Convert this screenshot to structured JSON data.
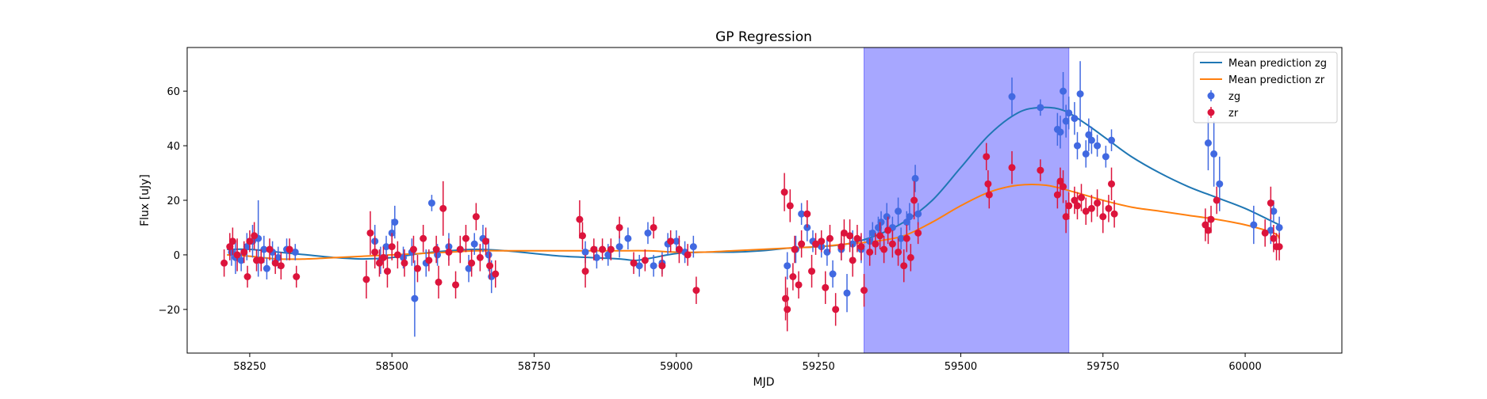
{
  "chart_data": {
    "type": "scatter",
    "title": "GP Regression",
    "xlabel": "MJD",
    "ylabel": "Flux [uJy]",
    "xlim": [
      58140,
      60170
    ],
    "ylim": [
      -36,
      76
    ],
    "xticks": [
      58250,
      58500,
      58750,
      59000,
      59250,
      59500,
      59750,
      60000
    ],
    "yticks": [
      -20,
      0,
      20,
      40,
      60
    ],
    "grid": false,
    "legend_position": "top-right",
    "shaded_region": {
      "x_start": 59330,
      "x_end": 59690,
      "color": "#a7a7ff"
    },
    "lines": [
      {
        "name": "Mean prediction zg",
        "color": "#1f77b4",
        "x": [
          58210,
          58250,
          58300,
          58350,
          58400,
          58450,
          58500,
          58550,
          58600,
          58650,
          58700,
          58750,
          58800,
          58850,
          58900,
          58930,
          58960,
          59000,
          59050,
          59100,
          59150,
          59200,
          59250,
          59300,
          59350,
          59400,
          59450,
          59500,
          59550,
          59600,
          59640,
          59680,
          59720,
          59760,
          59800,
          59850,
          59900,
          59950,
          60000,
          60050,
          60060
        ],
        "y": [
          2,
          2,
          1,
          0,
          -1,
          -1.5,
          -1,
          0.5,
          1.5,
          2,
          1.5,
          0.5,
          -0.5,
          -1,
          -1.5,
          -2,
          -1,
          0.5,
          1,
          1,
          1.5,
          2.5,
          3,
          4,
          7,
          12,
          20,
          32,
          44,
          52,
          54,
          53,
          48,
          42,
          36,
          30,
          25,
          21,
          17,
          12,
          11
        ]
      },
      {
        "name": "Mean prediction zr",
        "color": "#ff7f0e",
        "x": [
          58210,
          58250,
          58300,
          58350,
          58400,
          58450,
          58500,
          58550,
          58600,
          58650,
          58700,
          58750,
          58800,
          58850,
          58900,
          58950,
          59000,
          59050,
          59100,
          59150,
          59200,
          59250,
          59300,
          59350,
          59400,
          59450,
          59500,
          59550,
          59600,
          59650,
          59700,
          59750,
          59800,
          59850,
          59900,
          59950,
          60000,
          60050,
          60060
        ],
        "y": [
          0,
          -0.5,
          -1.5,
          -1.5,
          -1,
          -0.5,
          0,
          0.5,
          1,
          1.5,
          1.5,
          1.5,
          1.5,
          1.5,
          1.5,
          1.5,
          1,
          1,
          1.5,
          2,
          2.5,
          3,
          4,
          5,
          7,
          12,
          18,
          23,
          25.5,
          25.5,
          23,
          20,
          17.5,
          16,
          14.5,
          13,
          11,
          8,
          6
        ]
      }
    ],
    "series": [
      {
        "name": "zg",
        "color": "#4169e1",
        "points": [
          [
            58218,
            1,
            5
          ],
          [
            58225,
            -1,
            6
          ],
          [
            58235,
            -2,
            4
          ],
          [
            58245,
            3,
            5
          ],
          [
            58255,
            5,
            6
          ],
          [
            58265,
            6,
            14
          ],
          [
            58275,
            2,
            5
          ],
          [
            58280,
            -5,
            4
          ],
          [
            58290,
            1,
            4
          ],
          [
            58300,
            -1,
            4
          ],
          [
            58315,
            2,
            4
          ],
          [
            58330,
            1,
            3
          ],
          [
            58470,
            5,
            6
          ],
          [
            58480,
            -2,
            5
          ],
          [
            58490,
            3,
            4
          ],
          [
            58500,
            8,
            5
          ],
          [
            58505,
            12,
            6
          ],
          [
            58520,
            -1,
            4
          ],
          [
            58535,
            1,
            5
          ],
          [
            58540,
            -16,
            14
          ],
          [
            58560,
            -3,
            5
          ],
          [
            58570,
            19,
            3
          ],
          [
            58580,
            0,
            4
          ],
          [
            58600,
            3,
            5
          ],
          [
            58620,
            2,
            4
          ],
          [
            58635,
            -5,
            5
          ],
          [
            58645,
            4,
            4
          ],
          [
            58660,
            6,
            5
          ],
          [
            58670,
            0,
            6
          ],
          [
            58675,
            -8,
            6
          ],
          [
            58840,
            1,
            4
          ],
          [
            58860,
            -1,
            4
          ],
          [
            58880,
            0,
            4
          ],
          [
            58900,
            3,
            4
          ],
          [
            58915,
            6,
            4
          ],
          [
            58935,
            -4,
            4
          ],
          [
            58950,
            8,
            4
          ],
          [
            58960,
            -4,
            4
          ],
          [
            58975,
            -3,
            4
          ],
          [
            58985,
            4,
            4
          ],
          [
            59000,
            5,
            4
          ],
          [
            59015,
            1,
            4
          ],
          [
            59030,
            3,
            4
          ],
          [
            59195,
            -4,
            5
          ],
          [
            59210,
            2,
            5
          ],
          [
            59220,
            15,
            4
          ],
          [
            59230,
            10,
            5
          ],
          [
            59240,
            5,
            4
          ],
          [
            59255,
            3,
            4
          ],
          [
            59265,
            1,
            5
          ],
          [
            59275,
            -7,
            5
          ],
          [
            59290,
            2,
            4
          ],
          [
            59300,
            -14,
            7
          ],
          [
            59310,
            4,
            5
          ],
          [
            59325,
            2,
            5
          ],
          [
            59340,
            5,
            4
          ],
          [
            59345,
            8,
            4
          ],
          [
            59355,
            10,
            4
          ],
          [
            59360,
            12,
            4
          ],
          [
            59370,
            14,
            5
          ],
          [
            59380,
            10,
            4
          ],
          [
            59390,
            16,
            5
          ],
          [
            59395,
            6,
            4
          ],
          [
            59405,
            12,
            4
          ],
          [
            59410,
            14,
            5
          ],
          [
            59420,
            28,
            5
          ],
          [
            59425,
            15,
            4
          ],
          [
            59590,
            58,
            7
          ],
          [
            59640,
            54,
            3
          ],
          [
            59670,
            46,
            6
          ],
          [
            59675,
            45,
            6
          ],
          [
            59680,
            60,
            7
          ],
          [
            59685,
            49,
            6
          ],
          [
            59690,
            52,
            6
          ],
          [
            59700,
            50,
            6
          ],
          [
            59705,
            40,
            5
          ],
          [
            59710,
            59,
            12
          ],
          [
            59720,
            37,
            5
          ],
          [
            59725,
            44,
            6
          ],
          [
            59730,
            42,
            5
          ],
          [
            59740,
            40,
            4
          ],
          [
            59755,
            36,
            4
          ],
          [
            59765,
            42,
            4
          ],
          [
            59935,
            41,
            10
          ],
          [
            59945,
            37,
            12
          ],
          [
            59955,
            26,
            10
          ],
          [
            60015,
            11,
            7
          ],
          [
            60045,
            9,
            5
          ],
          [
            60050,
            16,
            4
          ],
          [
            60060,
            10,
            4
          ]
        ]
      },
      {
        "name": "zr",
        "color": "#dc143c",
        "points": [
          [
            58205,
            -3,
            5
          ],
          [
            58215,
            3,
            5
          ],
          [
            58220,
            5,
            5
          ],
          [
            58228,
            0,
            6
          ],
          [
            58240,
            1,
            4
          ],
          [
            58246,
            -8,
            4
          ],
          [
            58250,
            5,
            4
          ],
          [
            58258,
            7,
            5
          ],
          [
            58262,
            -2,
            4
          ],
          [
            58270,
            -2,
            4
          ],
          [
            58285,
            2,
            4
          ],
          [
            58295,
            -3,
            4
          ],
          [
            58305,
            -4,
            5
          ],
          [
            58320,
            2,
            4
          ],
          [
            58332,
            -8,
            4
          ],
          [
            58455,
            -9,
            7
          ],
          [
            58462,
            8,
            8
          ],
          [
            58470,
            1,
            6
          ],
          [
            58478,
            -3,
            5
          ],
          [
            58485,
            -1,
            4
          ],
          [
            58492,
            -6,
            6
          ],
          [
            58500,
            3,
            5
          ],
          [
            58510,
            0,
            5
          ],
          [
            58522,
            -3,
            5
          ],
          [
            58538,
            2,
            5
          ],
          [
            58545,
            -5,
            5
          ],
          [
            58555,
            6,
            5
          ],
          [
            58565,
            -2,
            4
          ],
          [
            58578,
            2,
            5
          ],
          [
            58582,
            -10,
            6
          ],
          [
            58590,
            17,
            10
          ],
          [
            58600,
            1,
            5
          ],
          [
            58612,
            -11,
            5
          ],
          [
            58620,
            2,
            5
          ],
          [
            58630,
            6,
            5
          ],
          [
            58640,
            -3,
            5
          ],
          [
            58648,
            14,
            5
          ],
          [
            58655,
            -1,
            5
          ],
          [
            58665,
            5,
            5
          ],
          [
            58672,
            -4,
            5
          ],
          [
            58682,
            -7,
            5
          ],
          [
            58830,
            13,
            7
          ],
          [
            58835,
            7,
            5
          ],
          [
            58840,
            -6,
            6
          ],
          [
            58855,
            2,
            4
          ],
          [
            58870,
            2,
            4
          ],
          [
            58885,
            2,
            4
          ],
          [
            58900,
            10,
            4
          ],
          [
            58925,
            -3,
            4
          ],
          [
            58945,
            -2,
            4
          ],
          [
            58960,
            10,
            4
          ],
          [
            58975,
            -4,
            4
          ],
          [
            58990,
            5,
            4
          ],
          [
            59005,
            2,
            5
          ],
          [
            59020,
            0,
            4
          ],
          [
            59035,
            -13,
            5
          ],
          [
            59190,
            23,
            7
          ],
          [
            59192,
            -16,
            8
          ],
          [
            59195,
            -20,
            8
          ],
          [
            59200,
            18,
            6
          ],
          [
            59205,
            -8,
            5
          ],
          [
            59208,
            2,
            5
          ],
          [
            59215,
            -11,
            5
          ],
          [
            59220,
            4,
            5
          ],
          [
            59230,
            15,
            5
          ],
          [
            59238,
            -6,
            6
          ],
          [
            59245,
            4,
            4
          ],
          [
            59255,
            5,
            4
          ],
          [
            59262,
            -12,
            6
          ],
          [
            59270,
            6,
            5
          ],
          [
            59280,
            -20,
            6
          ],
          [
            59290,
            3,
            5
          ],
          [
            59295,
            8,
            5
          ],
          [
            59305,
            7,
            6
          ],
          [
            59310,
            -2,
            6
          ],
          [
            59318,
            6,
            5
          ],
          [
            59325,
            3,
            5
          ],
          [
            59330,
            -13,
            6
          ],
          [
            59340,
            1,
            5
          ],
          [
            59350,
            4,
            4
          ],
          [
            59358,
            7,
            5
          ],
          [
            59365,
            2,
            5
          ],
          [
            59372,
            9,
            5
          ],
          [
            59380,
            4,
            5
          ],
          [
            59390,
            1,
            5
          ],
          [
            59400,
            -4,
            6
          ],
          [
            59405,
            6,
            5
          ],
          [
            59412,
            -1,
            5
          ],
          [
            59418,
            20,
            7
          ],
          [
            59425,
            8,
            4
          ],
          [
            59545,
            36,
            5
          ],
          [
            59548,
            26,
            5
          ],
          [
            59550,
            22,
            5
          ],
          [
            59590,
            32,
            6
          ],
          [
            59640,
            31,
            4
          ],
          [
            59670,
            22,
            5
          ],
          [
            59675,
            27,
            5
          ],
          [
            59680,
            25,
            6
          ],
          [
            59685,
            14,
            6
          ],
          [
            59690,
            18,
            5
          ],
          [
            59700,
            20,
            5
          ],
          [
            59705,
            18,
            5
          ],
          [
            59712,
            21,
            5
          ],
          [
            59720,
            16,
            5
          ],
          [
            59730,
            17,
            5
          ],
          [
            59740,
            19,
            5
          ],
          [
            59750,
            14,
            6
          ],
          [
            59760,
            17,
            5
          ],
          [
            59765,
            26,
            6
          ],
          [
            59770,
            15,
            5
          ],
          [
            59930,
            11,
            6
          ],
          [
            59935,
            9,
            5
          ],
          [
            59940,
            13,
            5
          ],
          [
            59950,
            20,
            5
          ],
          [
            60035,
            8,
            5
          ],
          [
            60045,
            19,
            6
          ],
          [
            60050,
            6,
            5
          ],
          [
            60055,
            3,
            5
          ],
          [
            60060,
            3,
            5
          ]
        ]
      }
    ]
  }
}
